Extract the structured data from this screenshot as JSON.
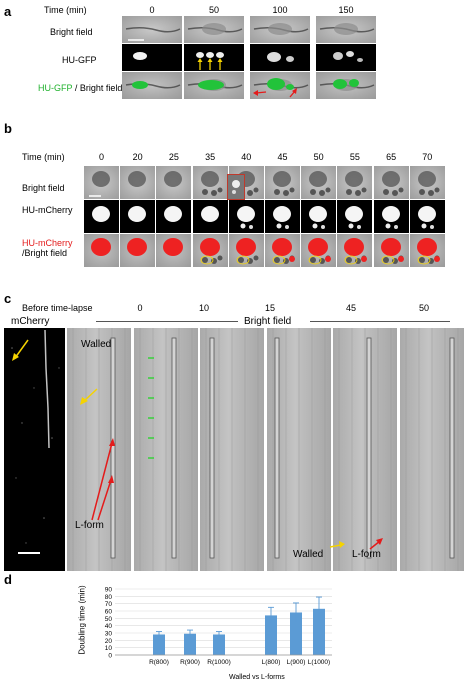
{
  "panel_a": {
    "label": "a",
    "time_header": "Time (min)",
    "times": [
      "0",
      "50",
      "100",
      "150"
    ],
    "rows": {
      "bright": "Bright field",
      "gfp": "HU-GFP",
      "overlay_colored": "HU-GFP",
      "overlay_rest": " / Bright field"
    }
  },
  "panel_b": {
    "label": "b",
    "time_header": "Time (min)",
    "times": [
      "0",
      "20",
      "25",
      "35",
      "40",
      "45",
      "50",
      "55",
      "65",
      "70"
    ],
    "rows": {
      "bright": "Bright field",
      "mcherry": "HU-mCherry",
      "overlay_colored": "HU-mCherry",
      "overlay_rest": "/Bright field"
    }
  },
  "panel_c": {
    "label": "c",
    "before": "Before time-lapse",
    "mcherry": "mCherry",
    "bright_field": "Bright field",
    "times": [
      "0",
      "10",
      "15",
      "45",
      "50"
    ],
    "walled_top": "Walled",
    "lform_left": "L-form",
    "walled_bottom": "Walled",
    "lform_bottom": "L-form"
  },
  "panel_d": {
    "label": "d",
    "colors": {
      "bar": "#5b9bd5",
      "error": "#5b9bd5"
    }
  },
  "chart_data": {
    "type": "bar",
    "categories": [
      "R(800)",
      "R(900)",
      "R(1000)",
      "L(800)",
      "L(900)",
      "L(1000)"
    ],
    "values": [
      28,
      29,
      28,
      54,
      58,
      63
    ],
    "errors": [
      4,
      5,
      4,
      11,
      13,
      16
    ],
    "xlabel": "Walled vs L-forms",
    "ylabel": "Doubling time (min)",
    "ylim": [
      0,
      90
    ],
    "yticks": [
      "0",
      "10",
      "20",
      "30",
      "40",
      "50",
      "60",
      "70",
      "80",
      "90"
    ],
    "grid": true
  }
}
